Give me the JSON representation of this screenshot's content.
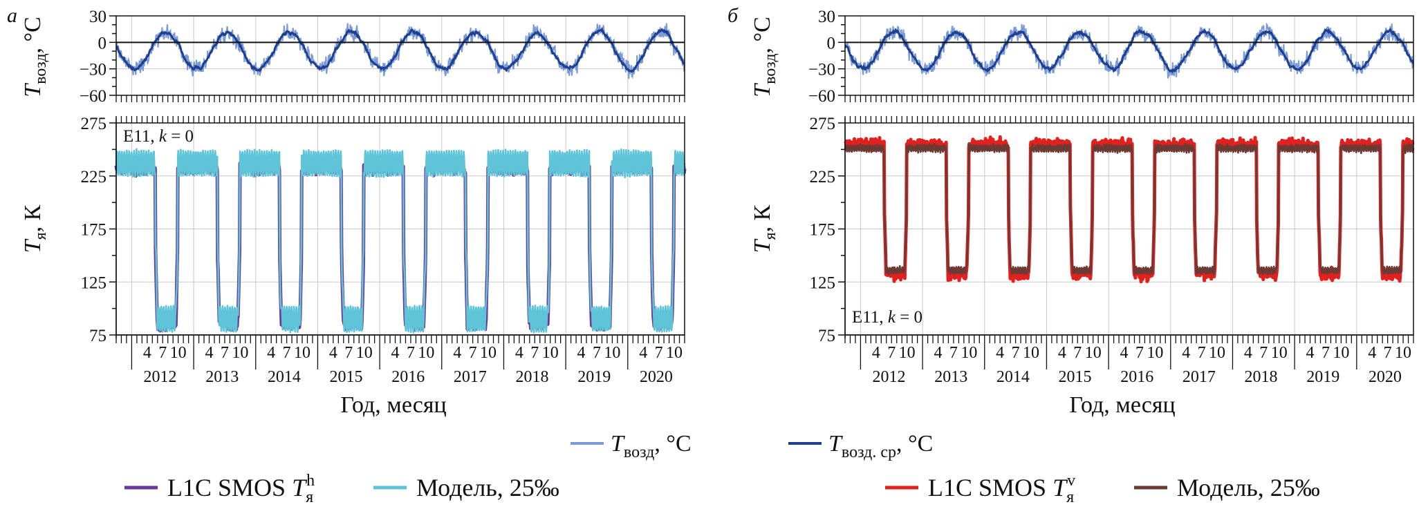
{
  "figure": {
    "panel_labels": [
      "а",
      "б"
    ],
    "xlabel": "Год, месяц",
    "years": [
      "2012",
      "2013",
      "2014",
      "2015",
      "2016",
      "2017",
      "2018",
      "2019",
      "2020"
    ],
    "month_ticks": [
      "4",
      "7",
      "10"
    ],
    "upper_ylabel": {
      "main": "T",
      "sub": "возд",
      "suffix": ", °C"
    },
    "lower_ylabel": {
      "main": "T",
      "sub": "я",
      "suffix": ", К"
    },
    "upper_yticks": [
      "30",
      "0",
      "−30",
      "−60"
    ],
    "lower_yticks": [
      "275",
      "225",
      "175",
      "125",
      "75"
    ],
    "legend_top": [
      {
        "main": "T",
        "sub": "возд",
        "suffix": ", °C",
        "color": "#7a9ad8"
      },
      {
        "main": "T",
        "sub": "возд. ср",
        "suffix": ", °C",
        "color": "#1f3f8f"
      }
    ]
  },
  "chart_data": [
    {
      "type": "line",
      "panel": "а",
      "annotation": "E11, k = 0",
      "xlim": [
        "2011-10",
        "2020-12"
      ],
      "upper": {
        "ylabel": "T возд, °C",
        "ylim": [
          -60,
          30
        ],
        "series": [
          {
            "name": "T возд, °C",
            "color": "#7a9ad8",
            "style": "noisy daily air temperature, annual cycle",
            "summer_peak_C": 20,
            "winter_min_C": -40
          },
          {
            "name": "T возд. ср, °C",
            "color": "#1f3f8f",
            "style": "smoothed air temperature",
            "summer_peak_C": 12,
            "winter_min_C": -30
          }
        ]
      },
      "lower": {
        "ylabel": "T я, К",
        "ylim": [
          75,
          275
        ],
        "series": [
          {
            "name": "L1C SMOS T я h",
            "color": "#6b3a9a",
            "winter_K": 232,
            "summer_K": 85
          },
          {
            "name": "Модель, 25‰",
            "color": "#5fc4d8",
            "winter_K": 237,
            "summer_K": 90
          }
        ],
        "summer_low_months": [
          5,
          9
        ]
      },
      "legend": [
        {
          "label_main": "L1C SMOS ",
          "label_T": "T",
          "label_sub": "я",
          "label_sup": "h",
          "color": "#6b3a9a"
        },
        {
          "label_main": "Модель, 25‰",
          "color": "#5fc4d8"
        }
      ]
    },
    {
      "type": "line",
      "panel": "б",
      "annotation": "E11, k = 0",
      "xlim": [
        "2011-10",
        "2020-12"
      ],
      "upper": {
        "ylabel": "T возд, °C",
        "ylim": [
          -60,
          30
        ],
        "series": [
          {
            "name": "T возд, °C",
            "color": "#7a9ad8",
            "style": "noisy daily air temperature, annual cycle",
            "summer_peak_C": 20,
            "winter_min_C": -40
          },
          {
            "name": "T возд. ср, °C",
            "color": "#1f3f8f",
            "style": "smoothed air temperature",
            "summer_peak_C": 12,
            "winter_min_C": -30
          }
        ]
      },
      "lower": {
        "ylabel": "T я, К",
        "ylim": [
          75,
          275
        ],
        "series": [
          {
            "name": "L1C SMOS T я v",
            "color": "#e2201e",
            "winter_K": 255,
            "summer_K": 132
          },
          {
            "name": "Модель, 25‰",
            "color": "#6b3a34",
            "winter_K": 251,
            "summer_K": 136
          }
        ],
        "summer_low_months": [
          5,
          9
        ]
      },
      "legend": [
        {
          "label_main": "L1C SMOS ",
          "label_T": "T",
          "label_sub": "я",
          "label_sup": "v",
          "color": "#e2201e"
        },
        {
          "label_main": "Модель, 25‰",
          "color": "#6b3a34"
        }
      ]
    }
  ]
}
